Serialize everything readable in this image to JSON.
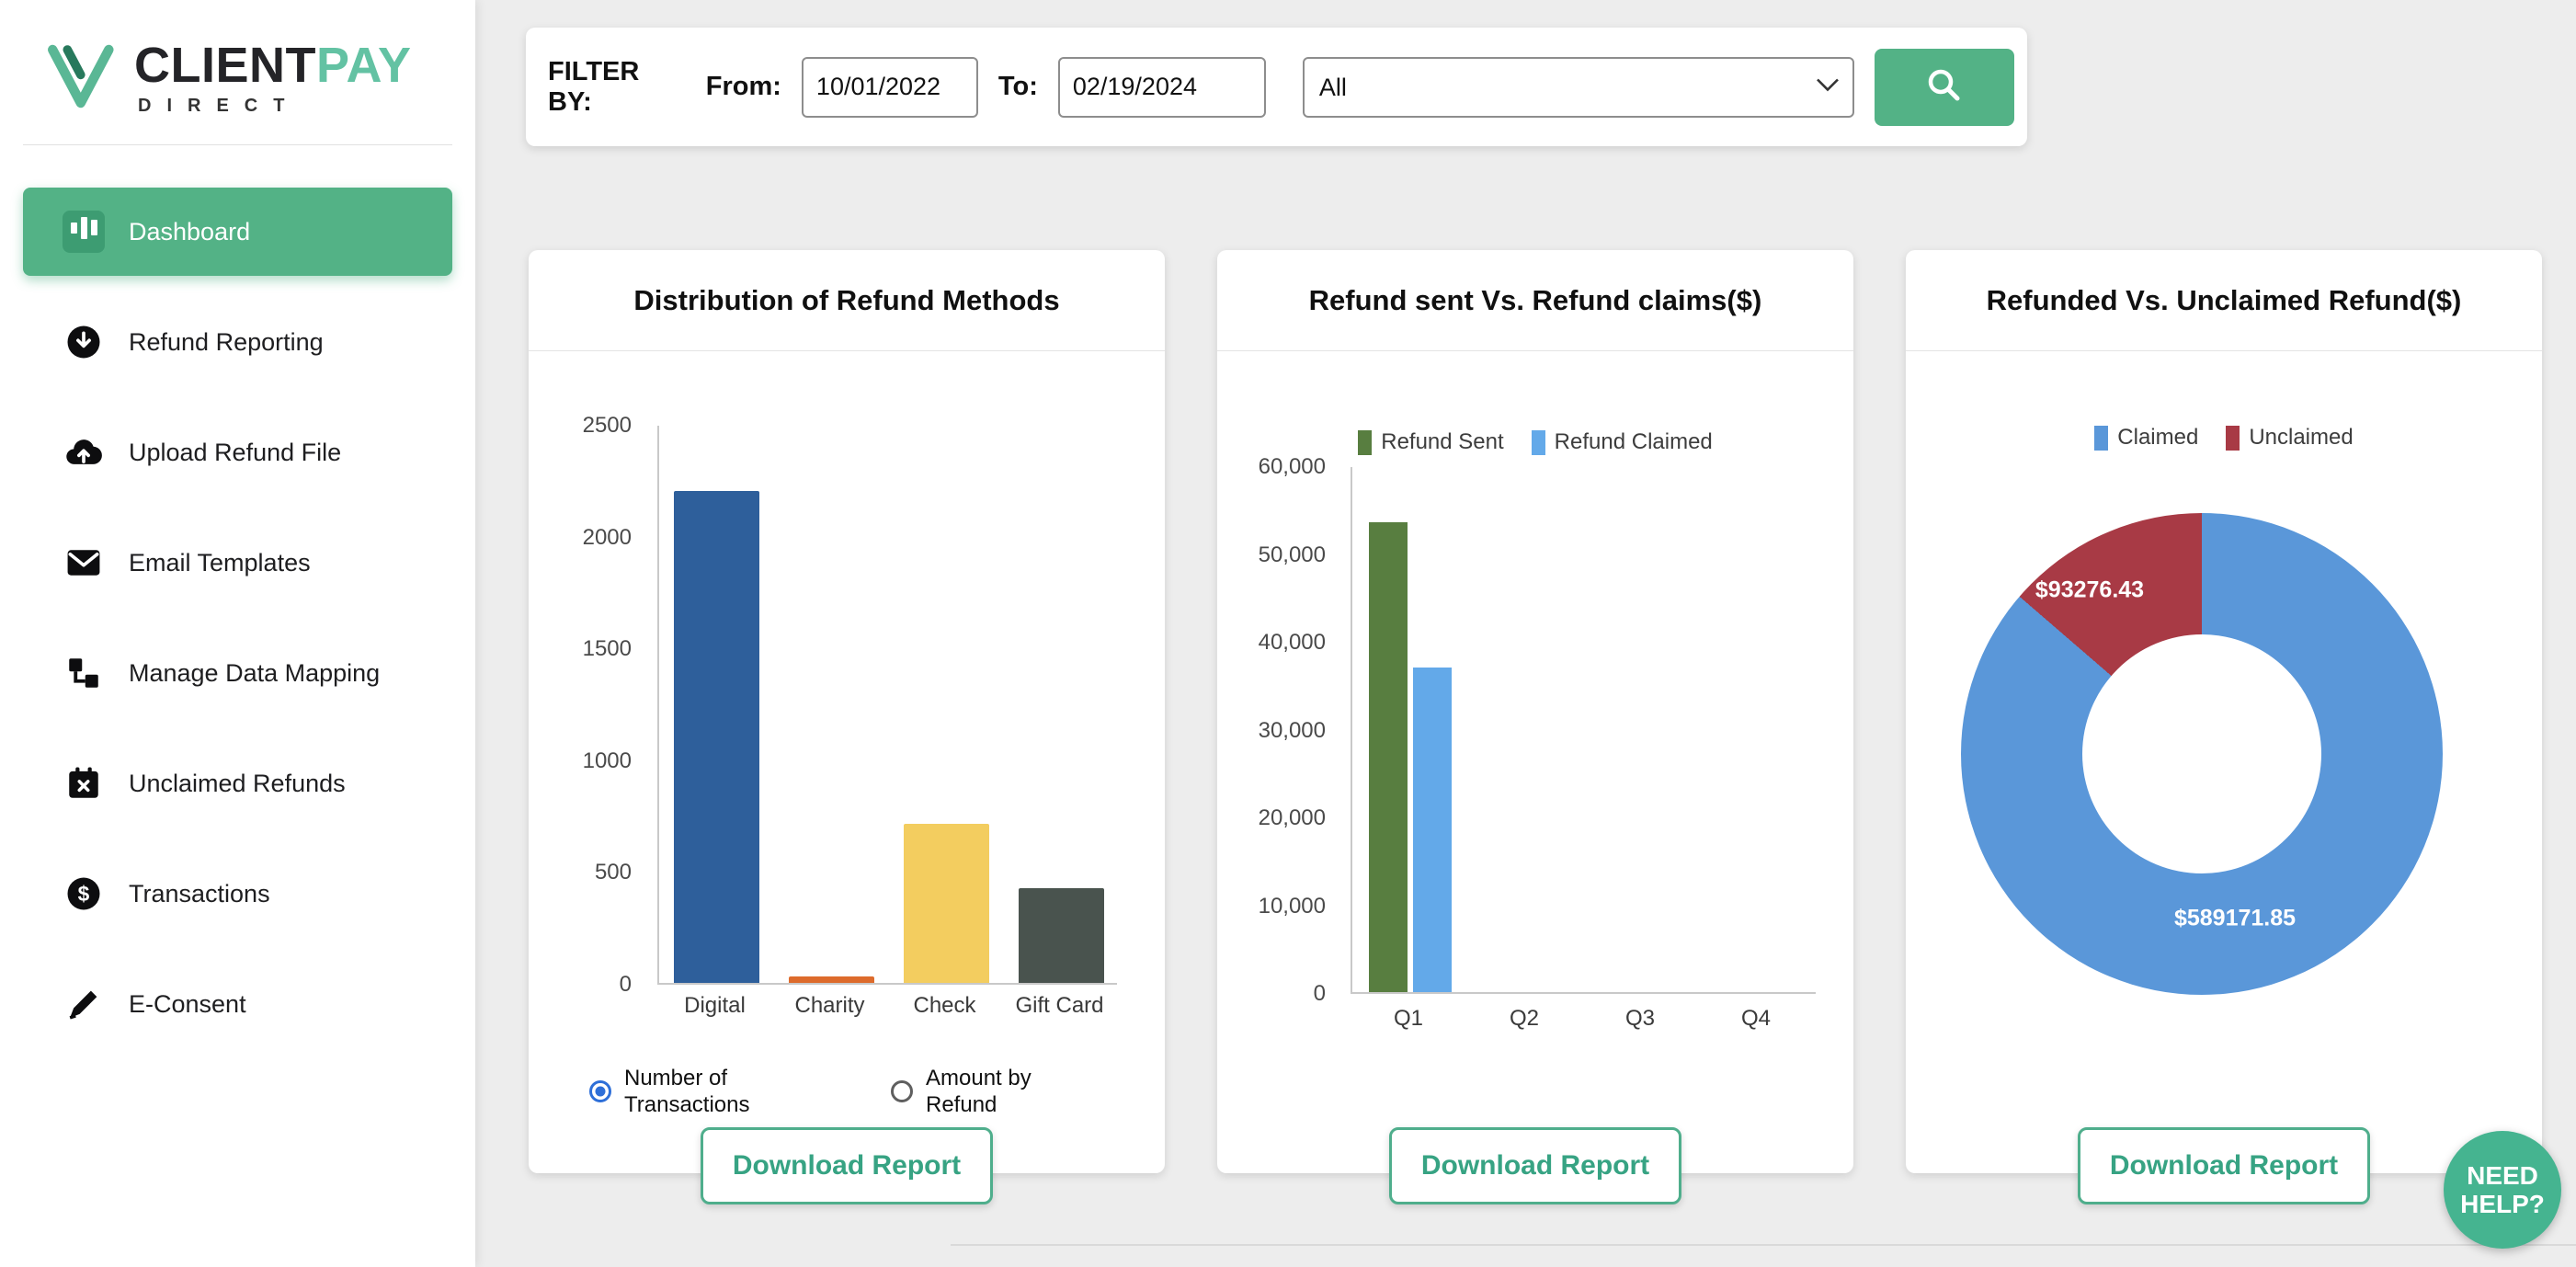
{
  "brand": {
    "name_a": "CLIENT",
    "name_b": "PAY",
    "tagline": "DIRECT",
    "logo_icon": "checkmark-v-logo"
  },
  "sidebar": {
    "items": [
      {
        "label": "Dashboard",
        "icon": "bar-chart-icon",
        "active": true
      },
      {
        "label": "Refund Reporting",
        "icon": "download-circle-icon",
        "active": false
      },
      {
        "label": "Upload Refund File",
        "icon": "cloud-upload-icon",
        "active": false
      },
      {
        "label": "Email Templates",
        "icon": "envelope-icon",
        "active": false
      },
      {
        "label": "Manage Data Mapping",
        "icon": "data-mapping-icon",
        "active": false
      },
      {
        "label": "Unclaimed Refunds",
        "icon": "calendar-x-icon",
        "active": false
      },
      {
        "label": "Transactions",
        "icon": "dollar-circle-icon",
        "active": false
      },
      {
        "label": "E-Consent",
        "icon": "signature-pen-icon",
        "active": false
      }
    ]
  },
  "filter": {
    "label": "FILTER BY:",
    "from_label": "From:",
    "from_value": "10/01/2022",
    "to_label": "To:",
    "to_value": "02/19/2024",
    "status_value": "All",
    "search_icon": "search-icon"
  },
  "cards": [
    {
      "title": "Distribution of Refund Methods",
      "download_label": "Download Report",
      "radios": [
        {
          "label": "Number of Transactions",
          "selected": true
        },
        {
          "label": "Amount by Refund",
          "selected": false
        }
      ]
    },
    {
      "title": "Refund sent Vs. Refund claims($)",
      "download_label": "Download Report"
    },
    {
      "title": "Refunded Vs. Unclaimed Refund($)",
      "download_label": "Download Report"
    }
  ],
  "chart_data": [
    {
      "type": "bar",
      "title": "Distribution of Refund Methods",
      "categories": [
        "Digital",
        "Charity",
        "Check",
        "Gift Card"
      ],
      "values": [
        2200,
        30,
        710,
        425
      ],
      "colors": [
        "#2e5f9b",
        "#dd6b2c",
        "#f3cd5f",
        "#49534e"
      ],
      "xlabel": "",
      "ylabel": "",
      "ylim": [
        0,
        2500
      ],
      "yticks": [
        0,
        500,
        1000,
        1500,
        2000,
        2500
      ],
      "grid": false,
      "legend_position": "none"
    },
    {
      "type": "bar",
      "title": "Refund sent Vs. Refund claims($)",
      "categories": [
        "Q1",
        "Q2",
        "Q3",
        "Q4"
      ],
      "series": [
        {
          "name": "Refund Sent",
          "color": "#587e40",
          "values": [
            53500,
            0,
            0,
            0
          ]
        },
        {
          "name": "Refund Claimed",
          "color": "#63a9e9",
          "values": [
            37000,
            0,
            0,
            0
          ]
        }
      ],
      "xlabel": "",
      "ylabel": "",
      "ylim": [
        0,
        60000
      ],
      "yticks": [
        0,
        10000,
        20000,
        30000,
        40000,
        50000,
        60000
      ],
      "grid": false,
      "legend_position": "top"
    },
    {
      "type": "pie",
      "variant": "doughnut",
      "title": "Refunded Vs. Unclaimed Refund($)",
      "segments": [
        {
          "label": "Claimed",
          "value": 589171.85,
          "display": "$589171.85",
          "color": "#5a97d9"
        },
        {
          "label": "Unclaimed",
          "value": 93276.43,
          "display": "$93276.43",
          "color": "#a83a45"
        }
      ],
      "legend_position": "top"
    }
  ],
  "help_badge": {
    "line1": "NEED",
    "line2": "HELP?"
  },
  "colors": {
    "accent": "#53b286",
    "accent_dark": "#3d9c72",
    "download_border": "#4fae8c",
    "radio_selected": "#2e6fd8",
    "background": "#ededed"
  }
}
